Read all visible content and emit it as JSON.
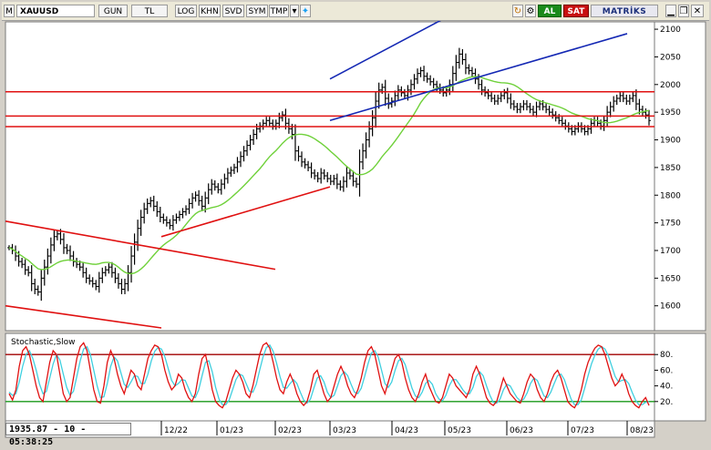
{
  "toolbar": {
    "menu_glyph": "M",
    "symbol": "XAUUSD",
    "periods": [
      "GUN",
      "TL",
      "LOG",
      "KHN",
      "SVD",
      "SYM",
      "TMP"
    ],
    "buy_label": "AL",
    "sell_label": "SAT",
    "brand": "MATRİKS",
    "icons": [
      "dropdown-icon",
      "twitter-icon",
      "refresh-icon",
      "settings-icon",
      "minimize-icon",
      "restore-icon",
      "close-icon"
    ]
  },
  "readout": {
    "text": "1935.87 - 10 - 05:38:25"
  },
  "colors": {
    "price_bars": "#000000",
    "moving_average": "#6fd13a",
    "support_resistance": "#e01010",
    "channel": "#1428b4",
    "stoch_k": "#e01010",
    "stoch_d": "#3fd0e0",
    "overbought_line": "#a00000",
    "oversold_line": "#1a9a1a"
  },
  "chart_data": [
    {
      "type": "ohlc",
      "x_tick_labels": [
        "12/22",
        "01/23",
        "02/23",
        "03/23",
        "04/23",
        "05/23",
        "06/23",
        "07/23",
        "08/23"
      ],
      "y_tick_labels": [
        "1600",
        "1650",
        "1700",
        "1750",
        "1800",
        "1850",
        "1900",
        "1950",
        "2000",
        "2050",
        "2100"
      ],
      "ylim": [
        1560,
        2110
      ],
      "close_series": [
        1705,
        1700,
        1690,
        1680,
        1675,
        1665,
        1660,
        1640,
        1630,
        1625,
        1650,
        1670,
        1690,
        1710,
        1725,
        1730,
        1720,
        1705,
        1700,
        1690,
        1680,
        1675,
        1670,
        1660,
        1650,
        1645,
        1640,
        1635,
        1650,
        1660,
        1665,
        1670,
        1660,
        1650,
        1640,
        1630,
        1640,
        1660,
        1690,
        1715,
        1740,
        1760,
        1775,
        1785,
        1790,
        1780,
        1770,
        1760,
        1755,
        1750,
        1745,
        1755,
        1760,
        1765,
        1770,
        1775,
        1785,
        1795,
        1800,
        1790,
        1780,
        1795,
        1810,
        1820,
        1815,
        1810,
        1820,
        1830,
        1840,
        1845,
        1850,
        1860,
        1870,
        1880,
        1890,
        1900,
        1910,
        1920,
        1925,
        1930,
        1935,
        1930,
        1925,
        1930,
        1940,
        1945,
        1930,
        1920,
        1910,
        1880,
        1870,
        1860,
        1855,
        1850,
        1840,
        1835,
        1830,
        1840,
        1835,
        1830,
        1825,
        1830,
        1820,
        1815,
        1825,
        1840,
        1835,
        1825,
        1820,
        1860,
        1880,
        1900,
        1920,
        1940,
        1970,
        1990,
        1995,
        1975,
        1965,
        1970,
        1980,
        1990,
        1985,
        1980,
        1990,
        2000,
        2010,
        2020,
        2025,
        2015,
        2010,
        2005,
        2000,
        1995,
        1990,
        1985,
        1990,
        2000,
        2020,
        2040,
        2055,
        2045,
        2030,
        2025,
        2020,
        2010,
        2000,
        1990,
        1985,
        1980,
        1975,
        1970,
        1975,
        1980,
        1985,
        1975,
        1965,
        1960,
        1955,
        1960,
        1965,
        1960,
        1955,
        1950,
        1960,
        1965,
        1960,
        1955,
        1950,
        1945,
        1940,
        1935,
        1930,
        1925,
        1920,
        1915,
        1920,
        1925,
        1920,
        1915,
        1920,
        1930,
        1935,
        1930,
        1925,
        1935,
        1950,
        1960,
        1970,
        1975,
        1980,
        1975,
        1970,
        1975,
        1980,
        1965,
        1955,
        1950,
        1945,
        1935
      ],
      "horizontal_levels": [
        1987,
        1943,
        1924
      ],
      "trendlines": [
        {
          "color": "channel",
          "from": [
            "03/23",
            2010
          ],
          "to": [
            "05/23",
            2120
          ]
        },
        {
          "color": "channel",
          "from": [
            "03/23",
            1935
          ],
          "to": [
            "08/23",
            2092
          ]
        },
        {
          "color": "support_resistance",
          "from": [
            "12/22",
            1725
          ],
          "to": [
            "03/23",
            1815
          ]
        },
        {
          "color": "support_resistance",
          "from": [
            "start",
            1753
          ],
          "to": [
            "02/23",
            1666
          ]
        },
        {
          "color": "support_resistance",
          "from": [
            "start",
            1600
          ],
          "to": [
            "12/22",
            1560
          ]
        }
      ]
    },
    {
      "type": "line",
      "title": "Stochastic,Slow",
      "y_tick_labels": [
        "20.",
        "40.",
        "60.",
        "80."
      ],
      "ylim": [
        0,
        100
      ],
      "levels": [
        80,
        20
      ],
      "series": [
        {
          "key": "k",
          "values": [
            30,
            22,
            35,
            65,
            85,
            90,
            80,
            60,
            40,
            25,
            20,
            45,
            70,
            85,
            80,
            55,
            30,
            20,
            25,
            50,
            75,
            90,
            95,
            85,
            60,
            35,
            20,
            18,
            40,
            70,
            85,
            75,
            55,
            40,
            30,
            45,
            60,
            55,
            40,
            35,
            55,
            75,
            85,
            92,
            90,
            80,
            60,
            45,
            35,
            40,
            55,
            50,
            35,
            25,
            20,
            30,
            55,
            75,
            80,
            60,
            35,
            20,
            15,
            12,
            20,
            35,
            50,
            60,
            55,
            45,
            30,
            25,
            40,
            60,
            80,
            92,
            95,
            88,
            70,
            50,
            35,
            30,
            45,
            55,
            45,
            30,
            20,
            15,
            20,
            35,
            55,
            60,
            45,
            30,
            20,
            25,
            40,
            55,
            65,
            55,
            40,
            30,
            25,
            35,
            50,
            70,
            85,
            90,
            80,
            60,
            40,
            30,
            45,
            60,
            75,
            80,
            70,
            50,
            35,
            25,
            20,
            30,
            45,
            55,
            40,
            30,
            20,
            18,
            25,
            40,
            55,
            50,
            40,
            35,
            30,
            25,
            35,
            55,
            65,
            55,
            40,
            25,
            18,
            15,
            20,
            35,
            50,
            40,
            30,
            25,
            20,
            18,
            30,
            45,
            55,
            50,
            35,
            25,
            20,
            30,
            45,
            55,
            60,
            50,
            35,
            20,
            15,
            12,
            20,
            35,
            55,
            70,
            80,
            88,
            92,
            90,
            80,
            65,
            50,
            40,
            45,
            55,
            45,
            30,
            20,
            15,
            12,
            20,
            25,
            15
          ]
        },
        {
          "key": "d",
          "values": [
            32,
            28,
            30,
            45,
            65,
            80,
            85,
            75,
            60,
            42,
            30,
            33,
            50,
            68,
            80,
            73,
            55,
            38,
            28,
            33,
            52,
            72,
            87,
            90,
            80,
            60,
            40,
            25,
            26,
            43,
            65,
            77,
            72,
            57,
            42,
            38,
            45,
            53,
            52,
            43,
            43,
            55,
            72,
            84,
            89,
            87,
            77,
            62,
            47,
            40,
            43,
            48,
            47,
            37,
            27,
            25,
            35,
            53,
            70,
            72,
            58,
            38,
            23,
            16,
            16,
            22,
            35,
            48,
            55,
            53,
            43,
            33,
            32,
            42,
            60,
            77,
            89,
            92,
            84,
            69,
            52,
            38,
            37,
            43,
            48,
            43,
            32,
            22,
            18,
            23,
            37,
            50,
            53,
            45,
            32,
            25,
            28,
            40,
            53,
            58,
            53,
            42,
            32,
            30,
            37,
            52,
            68,
            82,
            85,
            77,
            60,
            43,
            38,
            45,
            60,
            72,
            75,
            67,
            52,
            37,
            27,
            25,
            32,
            43,
            47,
            42,
            30,
            23,
            21,
            28,
            40,
            48,
            48,
            42,
            35,
            30,
            30,
            38,
            52,
            58,
            53,
            40,
            28,
            19,
            18,
            23,
            35,
            42,
            40,
            32,
            25,
            21,
            23,
            31,
            43,
            50,
            47,
            37,
            27,
            25,
            32,
            43,
            53,
            55,
            48,
            35,
            23,
            16,
            16,
            22,
            37,
            53,
            68,
            79,
            87,
            90,
            87,
            78,
            65,
            52,
            45,
            47,
            48,
            43,
            32,
            22,
            16,
            16,
            19,
            20
          ]
        }
      ]
    }
  ]
}
